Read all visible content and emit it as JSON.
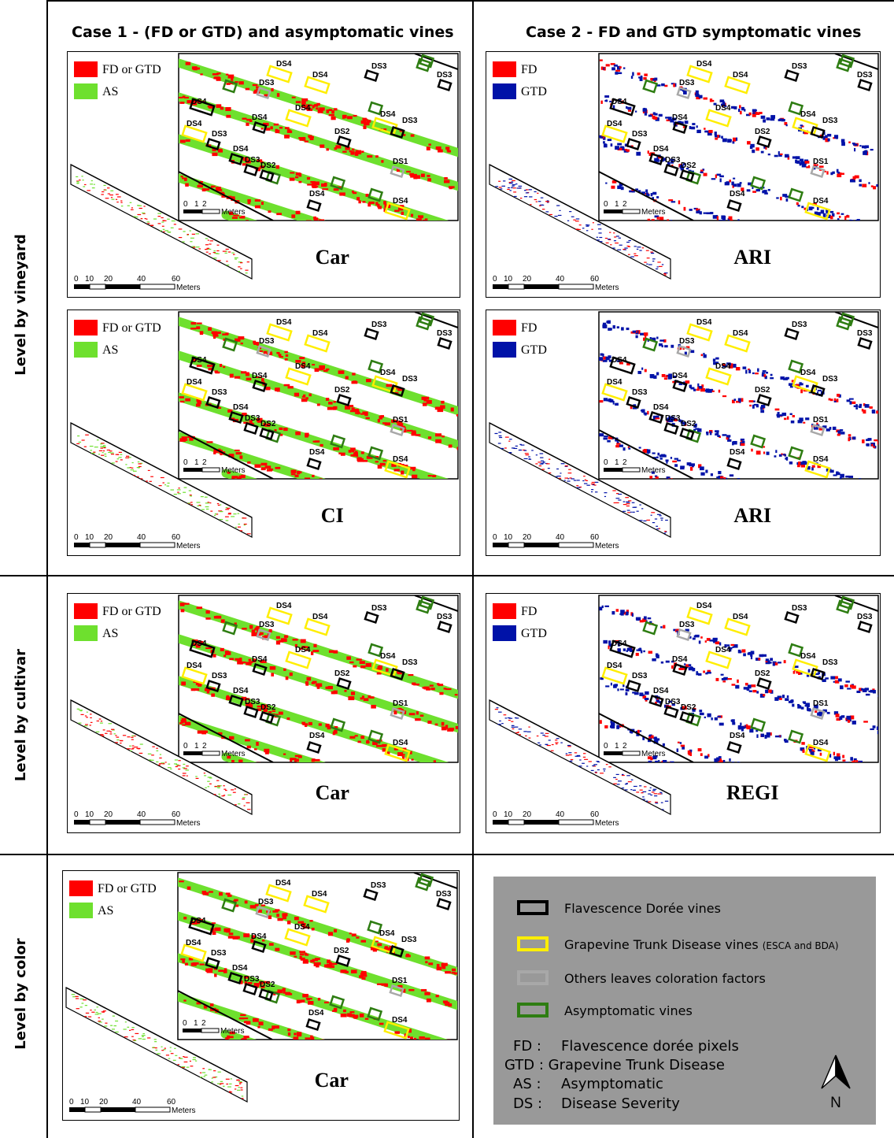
{
  "headers": {
    "case1": "Case 1 -  (FD or GTD) and  asymptomatic vines",
    "case2": "Case 2 -  FD and GTD symptomatic vines"
  },
  "row_labels": [
    "Level by vineyard",
    "Level by cultivar",
    "Level by color"
  ],
  "colors": {
    "red": "#ff0000",
    "green": "#6ee02e",
    "blue": "#0012a8",
    "fd_box": "#000000",
    "gtd_box": "#ffee00",
    "others_box": "#a8a8a8",
    "asym_box": "#2e7d12",
    "key_bg": "#999999"
  },
  "panels": [
    {
      "id": "p1",
      "case": 1,
      "index": "Car",
      "legend": [
        "FD or GTD",
        "AS"
      ]
    },
    {
      "id": "p2",
      "case": 2,
      "index": "ARI",
      "legend": [
        "FD",
        "GTD"
      ]
    },
    {
      "id": "p3",
      "case": 1,
      "index": "CI",
      "legend": [
        "FD or GTD",
        "AS"
      ]
    },
    {
      "id": "p4",
      "case": 2,
      "index": "ARI",
      "legend": [
        "FD",
        "GTD"
      ]
    },
    {
      "id": "p5",
      "case": 1,
      "index": "Car",
      "legend": [
        "FD or GTD",
        "AS"
      ]
    },
    {
      "id": "p6",
      "case": 2,
      "index": "REGI",
      "legend": [
        "FD",
        "GTD"
      ]
    },
    {
      "id": "p7",
      "case": 1,
      "index": "Car",
      "legend": [
        "FD or GTD",
        "AS"
      ]
    }
  ],
  "inset_labels": [
    "DS4",
    "DS4",
    "DS3",
    "DS3",
    "DS3",
    "DS4",
    "DS4",
    "DS4",
    "DS3",
    "DS4",
    "DS2",
    "DS4",
    "DS3",
    "DS4",
    "DS3",
    "DS2",
    "DS1",
    "DS4",
    "DS4"
  ],
  "inset_scale": {
    "ticks": [
      "0",
      "1",
      "2"
    ],
    "unit": "Meters"
  },
  "overview_scale": {
    "ticks": [
      "0",
      "10",
      "20",
      "40",
      "60"
    ],
    "unit": "Meters"
  },
  "key": {
    "items": [
      {
        "label": "Flavescence Dorée vines",
        "box": "fd"
      },
      {
        "label": "Grapevine Trunk Disease vines",
        "suffix": "(ESCA and BDA)",
        "box": "gtd"
      },
      {
        "label": "Others leaves coloration factors",
        "box": "others"
      },
      {
        "label": "Asymptomatic vines",
        "box": "asym"
      }
    ],
    "abbr": [
      {
        "code": "FD :",
        "text": "Flavescence dorée pixels"
      },
      {
        "code": "GTD : Grapevine Trunk Disease",
        "text": ""
      },
      {
        "code": "AS :",
        "text": "Asymptomatic"
      },
      {
        "code": "DS :",
        "text": "Disease Severity"
      }
    ],
    "north": "N"
  }
}
